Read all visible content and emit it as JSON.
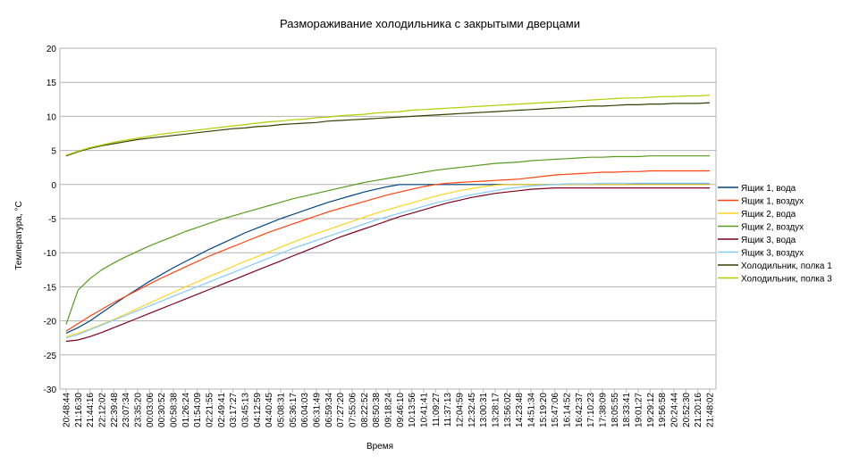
{
  "chart_data": {
    "type": "line",
    "title": "Размораживание холодильника с закрытыми дверцами",
    "xlabel": "Время",
    "ylabel": "Температура, °C",
    "ylim": [
      -30,
      20
    ],
    "yticks": [
      20,
      15,
      10,
      5,
      0,
      -5,
      -10,
      -15,
      -20,
      -25,
      -30
    ],
    "grid": "horizontal",
    "legend_position": "right",
    "categories": [
      "20:48:44",
      "21:16:30",
      "21:44:16",
      "22:12:02",
      "22:39:48",
      "23:07:34",
      "23:35:20",
      "00:03:06",
      "00:30:52",
      "00:58:38",
      "01:26:24",
      "01:54:09",
      "02:21:55",
      "02:49:41",
      "03:17:27",
      "03:45:13",
      "04:12:59",
      "04:40:45",
      "05:08:31",
      "05:36:17",
      "06:04:03",
      "06:31:49",
      "06:59:34",
      "07:27:20",
      "07:55:06",
      "08:22:52",
      "08:50:38",
      "09:18:24",
      "09:46:10",
      "10:13:56",
      "10:41:41",
      "11:09:27",
      "11:37:13",
      "12:04:59",
      "12:32:45",
      "13:00:31",
      "13:28:17",
      "13:56:02",
      "14:23:48",
      "14:51:34",
      "15:19:20",
      "15:47:06",
      "16:14:52",
      "16:42:37",
      "17:10:23",
      "17:38:09",
      "18:05:55",
      "18:33:41",
      "19:01:27",
      "19:29:12",
      "19:56:58",
      "20:24:44",
      "20:52:30",
      "21:20:16",
      "21:48:02"
    ],
    "series": [
      {
        "name": "Ящик 1, вода",
        "color": "#004586",
        "values": [
          -21.8,
          -21.0,
          -20.0,
          -18.8,
          -17.6,
          -16.4,
          -15.3,
          -14.2,
          -13.2,
          -12.2,
          -11.3,
          -10.4,
          -9.5,
          -8.7,
          -7.9,
          -7.1,
          -6.4,
          -5.7,
          -5.0,
          -4.4,
          -3.8,
          -3.2,
          -2.6,
          -2.1,
          -1.6,
          -1.1,
          -0.7,
          -0.3,
          0.0,
          0.0,
          0.0,
          0.0,
          0.0,
          0.0,
          0.0,
          0.0,
          0.0,
          0.0,
          0.0,
          0.0,
          0.0,
          0.0,
          0.0,
          0.0,
          0.0,
          0.0,
          0.0,
          0.0,
          0.1,
          0.1,
          0.1,
          0.1,
          0.1,
          0.1,
          0.1
        ]
      },
      {
        "name": "Ящик 1, воздух",
        "color": "#ff420e",
        "values": [
          -21.5,
          -20.4,
          -19.3,
          -18.3,
          -17.3,
          -16.4,
          -15.5,
          -14.6,
          -13.7,
          -12.9,
          -12.1,
          -11.3,
          -10.5,
          -9.8,
          -9.1,
          -8.4,
          -7.7,
          -7.0,
          -6.4,
          -5.8,
          -5.2,
          -4.6,
          -4.0,
          -3.5,
          -3.0,
          -2.5,
          -2.0,
          -1.5,
          -1.1,
          -0.7,
          -0.3,
          0.0,
          0.2,
          0.3,
          0.4,
          0.5,
          0.6,
          0.7,
          0.8,
          1.0,
          1.2,
          1.4,
          1.5,
          1.6,
          1.7,
          1.8,
          1.8,
          1.9,
          1.9,
          2.0,
          2.0,
          2.0,
          2.0,
          2.0,
          2.0
        ]
      },
      {
        "name": "Ящик 2, вода",
        "color": "#ffd320",
        "values": [
          -22.3,
          -21.8,
          -21.2,
          -20.5,
          -19.8,
          -19.0,
          -18.2,
          -17.4,
          -16.6,
          -15.8,
          -15.0,
          -14.3,
          -13.5,
          -12.8,
          -12.0,
          -11.3,
          -10.6,
          -9.9,
          -9.2,
          -8.5,
          -7.8,
          -7.2,
          -6.6,
          -6.0,
          -5.4,
          -4.8,
          -4.2,
          -3.7,
          -3.2,
          -2.7,
          -2.2,
          -1.7,
          -1.3,
          -0.9,
          -0.6,
          -0.3,
          -0.1,
          0.0,
          0.0,
          0.0,
          0.0,
          0.0,
          0.0,
          0.0,
          0.0,
          0.0,
          0.0,
          0.0,
          0.0,
          0.0,
          0.0,
          0.0,
          0.0,
          0.0,
          0.0
        ]
      },
      {
        "name": "Ящик 2, воздух",
        "color": "#579d1c",
        "values": [
          -20.5,
          -15.5,
          -13.8,
          -12.5,
          -11.5,
          -10.6,
          -9.8,
          -9.0,
          -8.3,
          -7.6,
          -6.9,
          -6.3,
          -5.7,
          -5.1,
          -4.6,
          -4.1,
          -3.6,
          -3.1,
          -2.6,
          -2.1,
          -1.7,
          -1.3,
          -0.9,
          -0.5,
          -0.1,
          0.3,
          0.6,
          0.9,
          1.2,
          1.5,
          1.8,
          2.1,
          2.3,
          2.5,
          2.7,
          2.9,
          3.1,
          3.2,
          3.3,
          3.5,
          3.6,
          3.7,
          3.8,
          3.9,
          4.0,
          4.0,
          4.1,
          4.1,
          4.1,
          4.2,
          4.2,
          4.2,
          4.2,
          4.2,
          4.2
        ]
      },
      {
        "name": "Ящик 3, вода",
        "color": "#7e0021",
        "values": [
          -23.0,
          -22.8,
          -22.3,
          -21.7,
          -21.0,
          -20.3,
          -19.6,
          -18.9,
          -18.2,
          -17.5,
          -16.8,
          -16.1,
          -15.4,
          -14.7,
          -14.0,
          -13.3,
          -12.6,
          -11.9,
          -11.2,
          -10.5,
          -9.8,
          -9.1,
          -8.4,
          -7.7,
          -7.1,
          -6.5,
          -5.9,
          -5.3,
          -4.7,
          -4.2,
          -3.7,
          -3.2,
          -2.7,
          -2.3,
          -1.9,
          -1.6,
          -1.3,
          -1.1,
          -0.9,
          -0.7,
          -0.6,
          -0.5,
          -0.5,
          -0.5,
          -0.5,
          -0.5,
          -0.5,
          -0.5,
          -0.5,
          -0.5,
          -0.5,
          -0.5,
          -0.5,
          -0.5,
          -0.5
        ]
      },
      {
        "name": "Ящик 3, воздух",
        "color": "#83caff",
        "values": [
          -22.5,
          -22.0,
          -21.3,
          -20.6,
          -19.9,
          -19.2,
          -18.5,
          -17.8,
          -17.1,
          -16.4,
          -15.7,
          -15.0,
          -14.3,
          -13.6,
          -12.9,
          -12.2,
          -11.5,
          -10.8,
          -10.1,
          -9.4,
          -8.8,
          -8.2,
          -7.6,
          -7.0,
          -6.4,
          -5.8,
          -5.2,
          -4.7,
          -4.2,
          -3.7,
          -3.2,
          -2.7,
          -2.3,
          -1.9,
          -1.5,
          -1.2,
          -0.9,
          -0.6,
          -0.4,
          -0.2,
          -0.1,
          0.0,
          0.1,
          0.1,
          0.1,
          0.2,
          0.2,
          0.2,
          0.2,
          0.2,
          0.2,
          0.2,
          0.2,
          0.2,
          0.2
        ]
      },
      {
        "name": "Холодильник, полка 1",
        "color": "#314004",
        "values": [
          4.2,
          4.8,
          5.3,
          5.7,
          6.0,
          6.3,
          6.6,
          6.8,
          7.0,
          7.2,
          7.4,
          7.6,
          7.8,
          8.0,
          8.2,
          8.3,
          8.5,
          8.6,
          8.8,
          8.9,
          9.0,
          9.1,
          9.3,
          9.4,
          9.5,
          9.6,
          9.7,
          9.8,
          9.9,
          10.0,
          10.1,
          10.2,
          10.3,
          10.4,
          10.5,
          10.6,
          10.7,
          10.8,
          10.9,
          11.0,
          11.1,
          11.2,
          11.3,
          11.4,
          11.5,
          11.5,
          11.6,
          11.7,
          11.7,
          11.8,
          11.8,
          11.9,
          11.9,
          11.9,
          12.0
        ]
      },
      {
        "name": "Холодильник, полка 3",
        "color": "#aecf00",
        "values": [
          4.3,
          4.9,
          5.4,
          5.8,
          6.2,
          6.5,
          6.8,
          7.1,
          7.4,
          7.6,
          7.8,
          8.0,
          8.2,
          8.4,
          8.6,
          8.8,
          9.0,
          9.2,
          9.3,
          9.5,
          9.6,
          9.8,
          9.9,
          10.1,
          10.2,
          10.3,
          10.5,
          10.6,
          10.7,
          10.9,
          11.0,
          11.1,
          11.2,
          11.3,
          11.4,
          11.5,
          11.6,
          11.7,
          11.8,
          11.9,
          12.0,
          12.1,
          12.2,
          12.3,
          12.4,
          12.5,
          12.6,
          12.7,
          12.7,
          12.8,
          12.9,
          12.9,
          13.0,
          13.0,
          13.1
        ]
      }
    ]
  }
}
